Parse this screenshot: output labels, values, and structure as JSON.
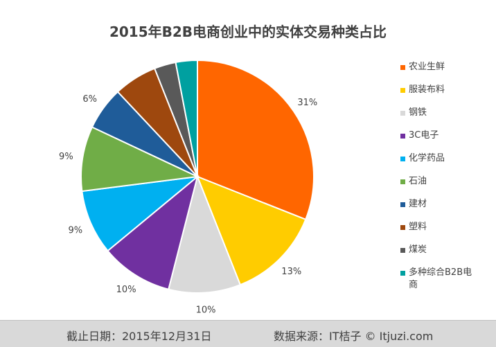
{
  "chart_data": {
    "type": "pie",
    "title": "2015年B2B电商创业中的实体交易种类占比",
    "categories": [
      "农业生鲜",
      "服装布料",
      "钢铁",
      "3C电子",
      "化学药品",
      "石油",
      "建材",
      "塑料",
      "煤炭",
      "多种综合B2B电商"
    ],
    "values": [
      31,
      13,
      10,
      10,
      9,
      9,
      6,
      6,
      3,
      3
    ],
    "data_labels": [
      "31%",
      "13%",
      "10%",
      "10%",
      "9%",
      "9%",
      "6%",
      "",
      "",
      ""
    ],
    "colors": [
      "#FF6600",
      "#FFCC00",
      "#D9D9D9",
      "#7030A0",
      "#00B0F0",
      "#70AD47",
      "#1F5C99",
      "#9E480E",
      "#595959",
      "#00A0A0"
    ],
    "legend_position": "right"
  },
  "footer": {
    "cutoff": "截止日期：2015年12月31日",
    "source": "数据来源：IT桔子 © Itjuzi.com"
  }
}
